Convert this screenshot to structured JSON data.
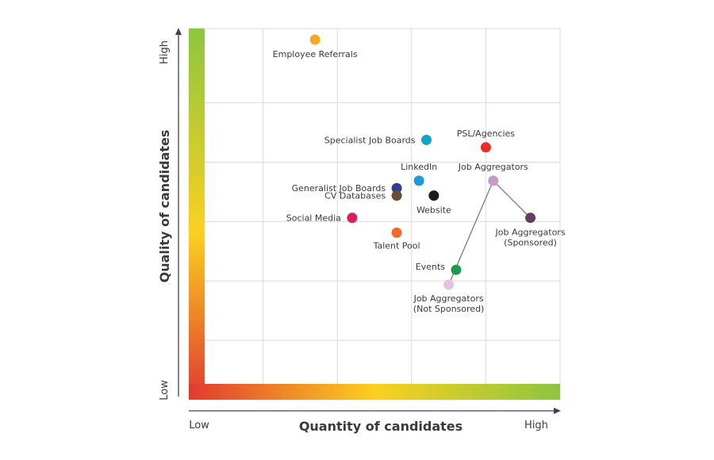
{
  "chart_data": {
    "type": "scatter",
    "xlabel": "Quantity of candidates",
    "ylabel": "Quality of candidates",
    "x_low_label": "Low",
    "x_high_label": "High",
    "y_low_label": "Low",
    "y_high_label": "High",
    "xlim": [
      0,
      10
    ],
    "ylim": [
      0,
      10
    ],
    "grid": true,
    "points": [
      {
        "name": "Employee Referrals",
        "x": 3.4,
        "y": 9.7,
        "color": "#f7a823",
        "label": [
          "Employee Referrals"
        ]
      },
      {
        "name": "Specialist Job Boards",
        "x": 6.4,
        "y": 7.0,
        "color": "#12a6c3",
        "label": [
          "Specialist Job Boards"
        ]
      },
      {
        "name": "PSL/Agencies",
        "x": 8.0,
        "y": 6.8,
        "color": "#e63027",
        "label": [
          "PSL/Agencies"
        ]
      },
      {
        "name": "LinkedIn",
        "x": 6.2,
        "y": 5.9,
        "color": "#1d9ad6",
        "label": [
          "LinkedIn"
        ]
      },
      {
        "name": "Job Aggregators",
        "x": 8.2,
        "y": 5.9,
        "color": "#c79ac9",
        "label": [
          "Job Aggregators"
        ]
      },
      {
        "name": "Generalist Job Boards",
        "x": 5.6,
        "y": 5.7,
        "color": "#2e3f8f",
        "label": [
          "Generalist Job Boards"
        ]
      },
      {
        "name": "CV Databases",
        "x": 5.6,
        "y": 5.5,
        "color": "#6b4a3a",
        "label": [
          "CV Databases"
        ]
      },
      {
        "name": "Website",
        "x": 6.6,
        "y": 5.5,
        "color": "#1b1b1b",
        "label": [
          "Website"
        ]
      },
      {
        "name": "Social Media",
        "x": 4.4,
        "y": 4.9,
        "color": "#d61f5c",
        "label": [
          "Social Media"
        ]
      },
      {
        "name": "Job Aggregators (Sponsored)",
        "x": 9.2,
        "y": 4.9,
        "color": "#5e3f5f",
        "label": [
          "Job Aggregators",
          "(Sponsored)"
        ]
      },
      {
        "name": "Talent Pool",
        "x": 5.6,
        "y": 4.5,
        "color": "#f26a2e",
        "label": [
          "Talent Pool"
        ]
      },
      {
        "name": "Events",
        "x": 7.2,
        "y": 3.5,
        "color": "#1d9a4a",
        "label": [
          "Events"
        ]
      },
      {
        "name": "Job Aggregators (Not Sponsored)",
        "x": 7.0,
        "y": 3.1,
        "color": "#e2c4e0",
        "label": [
          "Job Aggregators",
          "(Not Sponsored)"
        ]
      }
    ],
    "connectors": [
      {
        "from": "Job Aggregators",
        "to": "Job Aggregators (Sponsored)"
      },
      {
        "from": "Job Aggregators",
        "to": "Job Aggregators (Not Sponsored)"
      }
    ]
  }
}
